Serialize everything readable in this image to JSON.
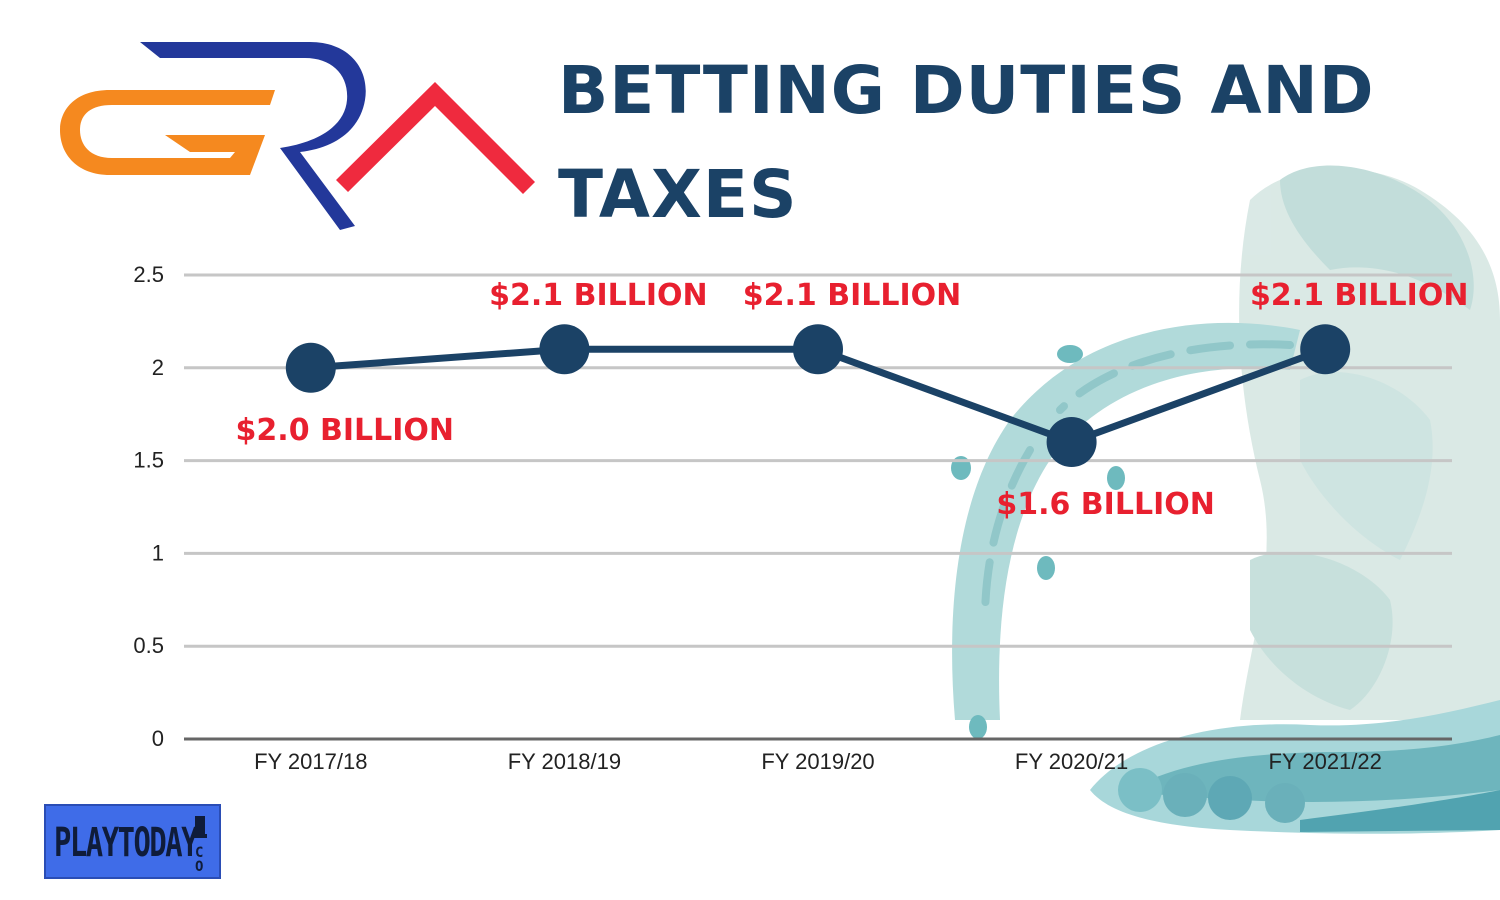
{
  "header": {
    "title_line1": "BETTING DUTIES AND",
    "title_line2": "TAXES"
  },
  "logos": {
    "top_left": "GRA",
    "bottom_left": "PLAYTODAY",
    "bottom_left_suffix": "CO"
  },
  "colors": {
    "title": "#1b4266",
    "line": "#1b4266",
    "label": "#e8202f",
    "grid": "#c6c6c6",
    "axis": "#666666",
    "logo_orange": "#f5891f",
    "logo_blue": "#23389a",
    "logo_red": "#ef2a3e",
    "water": "#a9d6d6",
    "brand_bg": "#3f6ce8"
  },
  "chart_data": {
    "type": "line",
    "title": "BETTING DUTIES AND TAXES",
    "categories": [
      "FY 2017/18",
      "FY 2018/19",
      "FY 2019/20",
      "FY 2020/21",
      "FY 2021/22"
    ],
    "values": [
      2.0,
      2.1,
      2.1,
      1.6,
      2.1
    ],
    "data_labels": [
      "$2.0 BILLION",
      "$2.1 BILLION",
      "$2.1 BILLION",
      "$1.6 BILLION",
      "$2.1 BILLION"
    ],
    "data_label_positions": [
      "below",
      "above",
      "above",
      "below",
      "above"
    ],
    "yticks": [
      0,
      0.5,
      1,
      1.5,
      2,
      2.5
    ],
    "ylim": [
      0,
      2.5
    ],
    "grid": true,
    "legend": "none"
  }
}
